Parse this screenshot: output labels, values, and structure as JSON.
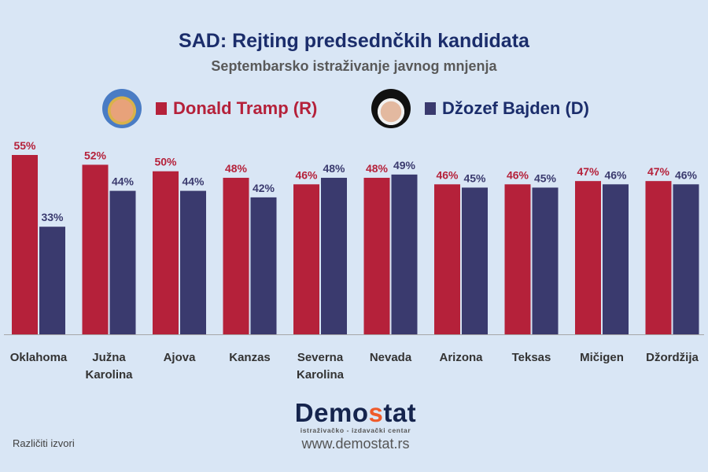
{
  "chart_data": {
    "type": "bar",
    "title": "SAD: Rejting  predsednčkih kandidata",
    "subtitle": "Septembarsko istraživanje javnog mnjenja",
    "categories": [
      "Oklahoma",
      "Južna Karolina",
      "Ajova",
      "Kanzas",
      "Severna Karolina",
      "Nevada",
      "Arizona",
      "Teksas",
      "Mičigen",
      "Džordžija"
    ],
    "series": [
      {
        "name": "Donald Tramp (R)",
        "color": "#b5213a",
        "values": [
          55,
          52,
          50,
          48,
          46,
          48,
          46,
          46,
          47,
          47
        ]
      },
      {
        "name": "Džozef Bajden (D)",
        "color": "#3a3a6e",
        "values": [
          33,
          44,
          44,
          42,
          48,
          49,
          45,
          45,
          46,
          46
        ]
      }
    ],
    "value_suffix": "%",
    "ylim": [
      0,
      55
    ],
    "grid": false,
    "legend": "top"
  },
  "legend_icons": [
    "trump-portrait",
    "biden-portrait"
  ],
  "footer": {
    "source": "Različiti izvori",
    "logo_text": "Demostat",
    "logo_tagline": "istraživačko - izdavački  centar",
    "url": "www.demostat.rs"
  }
}
